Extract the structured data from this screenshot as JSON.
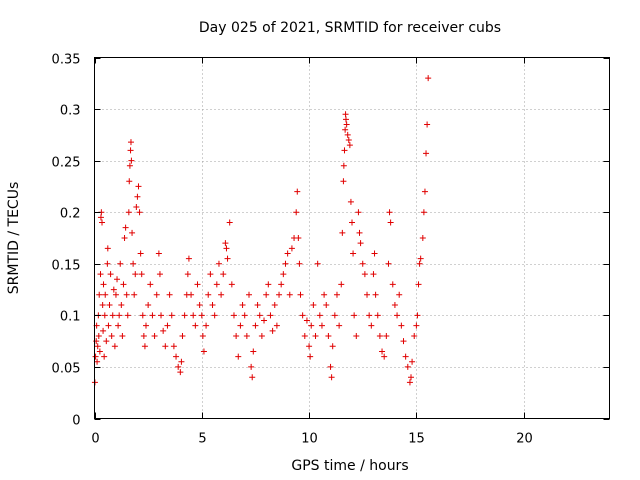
{
  "chart_data": {
    "type": "scatter",
    "title": "Day 025 of 2021, SRMTID for receiver cubs",
    "xlabel": "GPS time / hours",
    "ylabel": "SRMTID / TECUs",
    "xlim": [
      0,
      24
    ],
    "ylim": [
      0,
      0.35
    ],
    "xticks": [
      0,
      5,
      10,
      15,
      20
    ],
    "yticks": [
      0,
      0.05,
      0.1,
      0.15,
      0.2,
      0.25,
      0.3,
      0.35
    ],
    "xtick_labels": [
      "0",
      "5",
      "10",
      "15",
      "20"
    ],
    "ytick_labels": [
      "0",
      "0.05",
      "0.1",
      "0.15",
      "0.2",
      "0.25",
      "0.3",
      "0.35"
    ],
    "grid": true,
    "marker": "+",
    "color": "#e00000",
    "series": [
      {
        "name": "cubs",
        "points": [
          [
            0.02,
            0.035
          ],
          [
            0.05,
            0.06
          ],
          [
            0.08,
            0.075
          ],
          [
            0.1,
            0.09
          ],
          [
            0.12,
            0.055
          ],
          [
            0.15,
            0.07
          ],
          [
            0.18,
            0.1
          ],
          [
            0.2,
            0.08
          ],
          [
            0.22,
            0.12
          ],
          [
            0.25,
            0.065
          ],
          [
            0.28,
            0.14
          ],
          [
            0.3,
            0.195
          ],
          [
            0.32,
            0.2
          ],
          [
            0.35,
            0.19
          ],
          [
            0.38,
            0.11
          ],
          [
            0.4,
            0.085
          ],
          [
            0.42,
            0.13
          ],
          [
            0.45,
            0.06
          ],
          [
            0.48,
            0.1
          ],
          [
            0.5,
            0.12
          ],
          [
            0.55,
            0.075
          ],
          [
            0.6,
            0.15
          ],
          [
            0.62,
            0.165
          ],
          [
            0.65,
            0.09
          ],
          [
            0.7,
            0.11
          ],
          [
            0.75,
            0.14
          ],
          [
            0.8,
            0.08
          ],
          [
            0.85,
            0.1
          ],
          [
            0.9,
            0.125
          ],
          [
            0.95,
            0.07
          ],
          [
            1.0,
            0.12
          ],
          [
            1.05,
            0.135
          ],
          [
            1.1,
            0.09
          ],
          [
            1.15,
            0.1
          ],
          [
            1.2,
            0.15
          ],
          [
            1.25,
            0.11
          ],
          [
            1.3,
            0.08
          ],
          [
            1.35,
            0.13
          ],
          [
            1.4,
            0.175
          ],
          [
            1.45,
            0.185
          ],
          [
            1.5,
            0.12
          ],
          [
            1.55,
            0.1
          ],
          [
            1.6,
            0.2
          ],
          [
            1.62,
            0.23
          ],
          [
            1.65,
            0.245
          ],
          [
            1.68,
            0.26
          ],
          [
            1.7,
            0.268
          ],
          [
            1.72,
            0.25
          ],
          [
            1.75,
            0.18
          ],
          [
            1.8,
            0.15
          ],
          [
            1.85,
            0.12
          ],
          [
            1.9,
            0.14
          ],
          [
            1.95,
            0.205
          ],
          [
            2.0,
            0.215
          ],
          [
            2.05,
            0.225
          ],
          [
            2.1,
            0.2
          ],
          [
            2.15,
            0.16
          ],
          [
            2.2,
            0.14
          ],
          [
            2.25,
            0.1
          ],
          [
            2.3,
            0.08
          ],
          [
            2.35,
            0.07
          ],
          [
            2.4,
            0.09
          ],
          [
            2.5,
            0.11
          ],
          [
            2.6,
            0.13
          ],
          [
            2.7,
            0.1
          ],
          [
            2.8,
            0.08
          ],
          [
            2.9,
            0.12
          ],
          [
            3.0,
            0.16
          ],
          [
            3.05,
            0.14
          ],
          [
            3.1,
            0.1
          ],
          [
            3.2,
            0.085
          ],
          [
            3.3,
            0.07
          ],
          [
            3.4,
            0.09
          ],
          [
            3.5,
            0.12
          ],
          [
            3.6,
            0.1
          ],
          [
            3.7,
            0.07
          ],
          [
            3.8,
            0.06
          ],
          [
            3.9,
            0.05
          ],
          [
            4.0,
            0.045
          ],
          [
            4.05,
            0.055
          ],
          [
            4.1,
            0.08
          ],
          [
            4.2,
            0.1
          ],
          [
            4.3,
            0.12
          ],
          [
            4.35,
            0.14
          ],
          [
            4.4,
            0.155
          ],
          [
            4.5,
            0.12
          ],
          [
            4.6,
            0.1
          ],
          [
            4.7,
            0.09
          ],
          [
            4.8,
            0.13
          ],
          [
            4.9,
            0.11
          ],
          [
            5.0,
            0.1
          ],
          [
            5.05,
            0.08
          ],
          [
            5.1,
            0.065
          ],
          [
            5.2,
            0.09
          ],
          [
            5.3,
            0.12
          ],
          [
            5.4,
            0.14
          ],
          [
            5.5,
            0.11
          ],
          [
            5.6,
            0.1
          ],
          [
            5.7,
            0.13
          ],
          [
            5.8,
            0.15
          ],
          [
            5.9,
            0.12
          ],
          [
            6.0,
            0.14
          ],
          [
            6.1,
            0.17
          ],
          [
            6.15,
            0.165
          ],
          [
            6.2,
            0.155
          ],
          [
            6.3,
            0.19
          ],
          [
            6.4,
            0.13
          ],
          [
            6.5,
            0.1
          ],
          [
            6.6,
            0.08
          ],
          [
            6.7,
            0.06
          ],
          [
            6.8,
            0.09
          ],
          [
            6.9,
            0.11
          ],
          [
            7.0,
            0.1
          ],
          [
            7.1,
            0.08
          ],
          [
            7.2,
            0.12
          ],
          [
            7.3,
            0.05
          ],
          [
            7.35,
            0.04
          ],
          [
            7.4,
            0.065
          ],
          [
            7.5,
            0.09
          ],
          [
            7.6,
            0.11
          ],
          [
            7.7,
            0.1
          ],
          [
            7.8,
            0.08
          ],
          [
            7.9,
            0.095
          ],
          [
            8.0,
            0.12
          ],
          [
            8.1,
            0.13
          ],
          [
            8.2,
            0.1
          ],
          [
            8.3,
            0.085
          ],
          [
            8.4,
            0.11
          ],
          [
            8.5,
            0.09
          ],
          [
            8.6,
            0.12
          ],
          [
            8.7,
            0.13
          ],
          [
            8.8,
            0.14
          ],
          [
            8.9,
            0.15
          ],
          [
            9.0,
            0.16
          ],
          [
            9.1,
            0.12
          ],
          [
            9.2,
            0.165
          ],
          [
            9.3,
            0.175
          ],
          [
            9.4,
            0.2
          ],
          [
            9.45,
            0.22
          ],
          [
            9.5,
            0.175
          ],
          [
            9.55,
            0.15
          ],
          [
            9.6,
            0.12
          ],
          [
            9.7,
            0.1
          ],
          [
            9.8,
            0.08
          ],
          [
            9.9,
            0.095
          ],
          [
            10.0,
            0.07
          ],
          [
            10.05,
            0.06
          ],
          [
            10.1,
            0.09
          ],
          [
            10.2,
            0.11
          ],
          [
            10.3,
            0.08
          ],
          [
            10.4,
            0.15
          ],
          [
            10.5,
            0.1
          ],
          [
            10.6,
            0.09
          ],
          [
            10.7,
            0.12
          ],
          [
            10.8,
            0.11
          ],
          [
            10.9,
            0.08
          ],
          [
            11.0,
            0.05
          ],
          [
            11.05,
            0.04
          ],
          [
            11.1,
            0.07
          ],
          [
            11.2,
            0.1
          ],
          [
            11.3,
            0.12
          ],
          [
            11.4,
            0.09
          ],
          [
            11.5,
            0.13
          ],
          [
            11.55,
            0.18
          ],
          [
            11.6,
            0.23
          ],
          [
            11.62,
            0.245
          ],
          [
            11.65,
            0.26
          ],
          [
            11.68,
            0.28
          ],
          [
            11.7,
            0.295
          ],
          [
            11.72,
            0.29
          ],
          [
            11.75,
            0.285
          ],
          [
            11.8,
            0.275
          ],
          [
            11.85,
            0.27
          ],
          [
            11.9,
            0.265
          ],
          [
            11.95,
            0.21
          ],
          [
            12.0,
            0.19
          ],
          [
            12.05,
            0.16
          ],
          [
            12.1,
            0.1
          ],
          [
            12.2,
            0.08
          ],
          [
            12.3,
            0.2
          ],
          [
            12.35,
            0.18
          ],
          [
            12.4,
            0.17
          ],
          [
            12.5,
            0.15
          ],
          [
            12.6,
            0.14
          ],
          [
            12.7,
            0.12
          ],
          [
            12.8,
            0.1
          ],
          [
            12.9,
            0.09
          ],
          [
            13.0,
            0.14
          ],
          [
            13.05,
            0.16
          ],
          [
            13.1,
            0.12
          ],
          [
            13.2,
            0.1
          ],
          [
            13.3,
            0.08
          ],
          [
            13.4,
            0.065
          ],
          [
            13.5,
            0.06
          ],
          [
            13.6,
            0.08
          ],
          [
            13.7,
            0.15
          ],
          [
            13.75,
            0.2
          ],
          [
            13.8,
            0.19
          ],
          [
            13.9,
            0.13
          ],
          [
            14.0,
            0.11
          ],
          [
            14.1,
            0.1
          ],
          [
            14.2,
            0.12
          ],
          [
            14.3,
            0.09
          ],
          [
            14.4,
            0.075
          ],
          [
            14.5,
            0.06
          ],
          [
            14.6,
            0.05
          ],
          [
            14.7,
            0.035
          ],
          [
            14.75,
            0.04
          ],
          [
            14.8,
            0.055
          ],
          [
            14.9,
            0.08
          ],
          [
            15.0,
            0.09
          ],
          [
            15.05,
            0.1
          ],
          [
            15.1,
            0.13
          ],
          [
            15.15,
            0.15
          ],
          [
            15.2,
            0.155
          ],
          [
            15.3,
            0.175
          ],
          [
            15.35,
            0.2
          ],
          [
            15.4,
            0.22
          ],
          [
            15.45,
            0.257
          ],
          [
            15.5,
            0.285
          ],
          [
            15.55,
            0.33
          ]
        ]
      }
    ]
  }
}
